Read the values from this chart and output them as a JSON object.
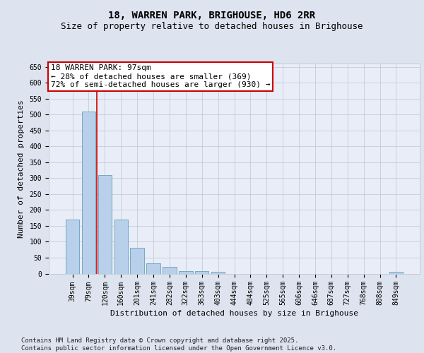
{
  "title1": "18, WARREN PARK, BRIGHOUSE, HD6 2RR",
  "title2": "Size of property relative to detached houses in Brighouse",
  "xlabel": "Distribution of detached houses by size in Brighouse",
  "ylabel": "Number of detached properties",
  "categories": [
    "39sqm",
    "79sqm",
    "120sqm",
    "160sqm",
    "201sqm",
    "241sqm",
    "282sqm",
    "322sqm",
    "363sqm",
    "403sqm",
    "444sqm",
    "484sqm",
    "525sqm",
    "565sqm",
    "606sqm",
    "646sqm",
    "687sqm",
    "727sqm",
    "768sqm",
    "808sqm",
    "849sqm"
  ],
  "values": [
    170,
    510,
    310,
    170,
    80,
    33,
    20,
    8,
    8,
    5,
    0,
    0,
    0,
    0,
    0,
    0,
    0,
    0,
    0,
    0,
    5
  ],
  "bar_color": "#b8d0ea",
  "bar_edge_color": "#6a9ec0",
  "vline_x": 1.5,
  "vline_color": "#cc0000",
  "annotation_text": "18 WARREN PARK: 97sqm\n← 28% of detached houses are smaller (369)\n72% of semi-detached houses are larger (930) →",
  "annotation_box_facecolor": "#ffffff",
  "annotation_box_edgecolor": "#cc0000",
  "ylim": [
    0,
    660
  ],
  "yticks": [
    0,
    50,
    100,
    150,
    200,
    250,
    300,
    350,
    400,
    450,
    500,
    550,
    600,
    650
  ],
  "bg_color": "#dde3ef",
  "plot_bg_color": "#e8edf7",
  "grid_color": "#c5ccd9",
  "footer": "Contains HM Land Registry data © Crown copyright and database right 2025.\nContains public sector information licensed under the Open Government Licence v3.0.",
  "title1_fontsize": 10,
  "title2_fontsize": 9,
  "tick_fontsize": 7,
  "ylabel_fontsize": 8,
  "xlabel_fontsize": 8,
  "annotation_fontsize": 8,
  "footer_fontsize": 6.5
}
